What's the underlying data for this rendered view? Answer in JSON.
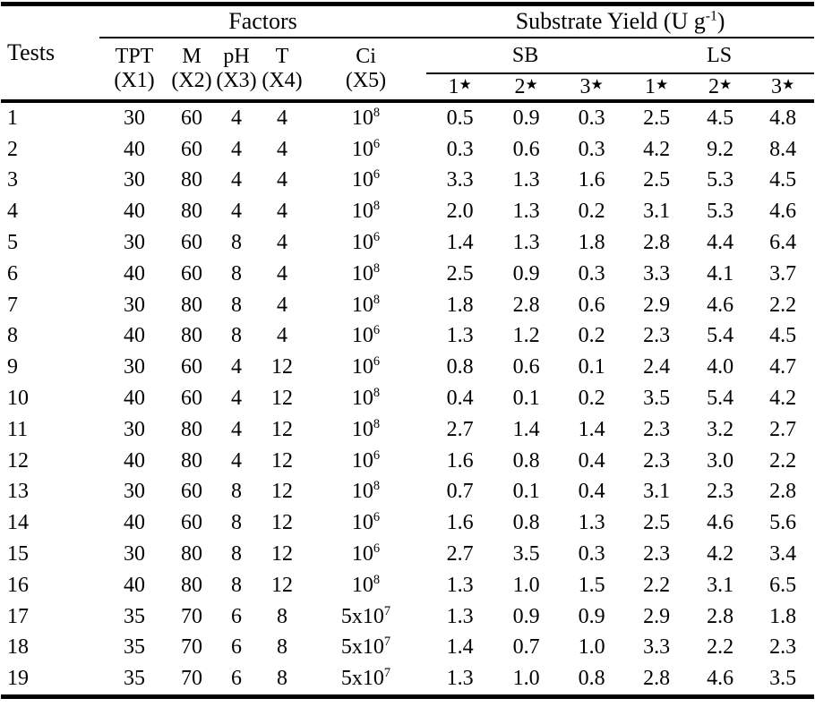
{
  "header": {
    "tests_label": "Tests",
    "factors_label": "Factors",
    "substrate_yield": {
      "prefix": "Substrate Yield (U g",
      "sup": "-1",
      "suffix": ")"
    },
    "factor_cols": [
      {
        "name": "TPT",
        "code": "(X1)"
      },
      {
        "name": "M",
        "code": "(X2)"
      },
      {
        "name": "pH",
        "code": "(X3)"
      },
      {
        "name": "T",
        "code": "(X4)"
      },
      {
        "name": "Ci",
        "code": "(X5)"
      }
    ],
    "groups": [
      {
        "label": "SB"
      },
      {
        "label": "LS"
      }
    ],
    "star_cols": [
      {
        "n": "1",
        "star": "★"
      },
      {
        "n": "2",
        "star": "★"
      },
      {
        "n": "3",
        "star": "★"
      },
      {
        "n": "1",
        "star": "★"
      },
      {
        "n": "2",
        "star": "★"
      },
      {
        "n": "3",
        "star": "★"
      }
    ]
  },
  "rows": [
    {
      "test": "1",
      "factors": [
        "30",
        "60",
        "4",
        "4"
      ],
      "ci": {
        "base": "10",
        "exp": "8"
      },
      "sb": [
        "0.5",
        "0.9",
        "0.3"
      ],
      "ls": [
        "2.5",
        "4.5",
        "4.8"
      ]
    },
    {
      "test": "2",
      "factors": [
        "40",
        "60",
        "4",
        "4"
      ],
      "ci": {
        "base": "10",
        "exp": "6"
      },
      "sb": [
        "0.3",
        "0.6",
        "0.3"
      ],
      "ls": [
        "4.2",
        "9.2",
        "8.4"
      ]
    },
    {
      "test": "3",
      "factors": [
        "30",
        "80",
        "4",
        "4"
      ],
      "ci": {
        "base": "10",
        "exp": "6"
      },
      "sb": [
        "3.3",
        "1.3",
        "1.6"
      ],
      "ls": [
        "2.5",
        "5.3",
        "4.5"
      ]
    },
    {
      "test": "4",
      "factors": [
        "40",
        "80",
        "4",
        "4"
      ],
      "ci": {
        "base": "10",
        "exp": "8"
      },
      "sb": [
        "2.0",
        "1.3",
        "0.2"
      ],
      "ls": [
        "3.1",
        "5.3",
        "4.6"
      ]
    },
    {
      "test": "5",
      "factors": [
        "30",
        "60",
        "8",
        "4"
      ],
      "ci": {
        "base": "10",
        "exp": "6"
      },
      "sb": [
        "1.4",
        "1.3",
        "1.8"
      ],
      "ls": [
        "2.8",
        "4.4",
        "6.4"
      ]
    },
    {
      "test": "6",
      "factors": [
        "40",
        "60",
        "8",
        "4"
      ],
      "ci": {
        "base": "10",
        "exp": "8"
      },
      "sb": [
        "2.5",
        "0.9",
        "0.3"
      ],
      "ls": [
        "3.3",
        "4.1",
        "3.7"
      ]
    },
    {
      "test": "7",
      "factors": [
        "30",
        "80",
        "8",
        "4"
      ],
      "ci": {
        "base": "10",
        "exp": "8"
      },
      "sb": [
        "1.8",
        "2.8",
        "0.6"
      ],
      "ls": [
        "2.9",
        "4.6",
        "2.2"
      ]
    },
    {
      "test": "8",
      "factors": [
        "40",
        "80",
        "8",
        "4"
      ],
      "ci": {
        "base": "10",
        "exp": "6"
      },
      "sb": [
        "1.3",
        "1.2",
        "0.2"
      ],
      "ls": [
        "2.3",
        "5.4",
        "4.5"
      ]
    },
    {
      "test": "9",
      "factors": [
        "30",
        "60",
        "4",
        "12"
      ],
      "ci": {
        "base": "10",
        "exp": "6"
      },
      "sb": [
        "0.8",
        "0.6",
        "0.1"
      ],
      "ls": [
        "2.4",
        "4.0",
        "4.7"
      ]
    },
    {
      "test": "10",
      "factors": [
        "40",
        "60",
        "4",
        "12"
      ],
      "ci": {
        "base": "10",
        "exp": "8"
      },
      "sb": [
        "0.4",
        "0.1",
        "0.2"
      ],
      "ls": [
        "3.5",
        "5.4",
        "4.2"
      ]
    },
    {
      "test": "11",
      "factors": [
        "30",
        "80",
        "4",
        "12"
      ],
      "ci": {
        "base": "10",
        "exp": "8"
      },
      "sb": [
        "2.7",
        "1.4",
        "1.4"
      ],
      "ls": [
        "2.3",
        "3.2",
        "2.7"
      ]
    },
    {
      "test": "12",
      "factors": [
        "40",
        "80",
        "4",
        "12"
      ],
      "ci": {
        "base": "10",
        "exp": "6"
      },
      "sb": [
        "1.6",
        "0.8",
        "0.4"
      ],
      "ls": [
        "2.3",
        "3.0",
        "2.2"
      ]
    },
    {
      "test": "13",
      "factors": [
        "30",
        "60",
        "8",
        "12"
      ],
      "ci": {
        "base": "10",
        "exp": "8"
      },
      "sb": [
        "0.7",
        "0.1",
        "0.4"
      ],
      "ls": [
        "3.1",
        "2.3",
        "2.8"
      ]
    },
    {
      "test": "14",
      "factors": [
        "40",
        "60",
        "8",
        "12"
      ],
      "ci": {
        "base": "10",
        "exp": "6"
      },
      "sb": [
        "1.6",
        "0.8",
        "1.3"
      ],
      "ls": [
        "2.5",
        "4.6",
        "5.6"
      ]
    },
    {
      "test": "15",
      "factors": [
        "30",
        "80",
        "8",
        "12"
      ],
      "ci": {
        "base": "10",
        "exp": "6"
      },
      "sb": [
        "2.7",
        "3.5",
        "0.3"
      ],
      "ls": [
        "2.3",
        "4.2",
        "3.4"
      ]
    },
    {
      "test": "16",
      "factors": [
        "40",
        "80",
        "8",
        "12"
      ],
      "ci": {
        "base": "10",
        "exp": "8"
      },
      "sb": [
        "1.3",
        "1.0",
        "1.5"
      ],
      "ls": [
        "2.2",
        "3.1",
        "6.5"
      ]
    },
    {
      "test": "17",
      "factors": [
        "35",
        "70",
        "6",
        "8"
      ],
      "ci": {
        "base": "5x10",
        "exp": "7"
      },
      "sb": [
        "1.3",
        "0.9",
        "0.9"
      ],
      "ls": [
        "2.9",
        "2.8",
        "1.8"
      ]
    },
    {
      "test": "18",
      "factors": [
        "35",
        "70",
        "6",
        "8"
      ],
      "ci": {
        "base": "5x10",
        "exp": "7"
      },
      "sb": [
        "1.4",
        "0.7",
        "1.0"
      ],
      "ls": [
        "3.3",
        "2.2",
        "2.3"
      ]
    },
    {
      "test": "19",
      "factors": [
        "35",
        "70",
        "6",
        "8"
      ],
      "ci": {
        "base": "5x10",
        "exp": "7"
      },
      "sb": [
        "1.3",
        "1.0",
        "0.8"
      ],
      "ls": [
        "2.8",
        "4.6",
        "3.5"
      ]
    }
  ]
}
